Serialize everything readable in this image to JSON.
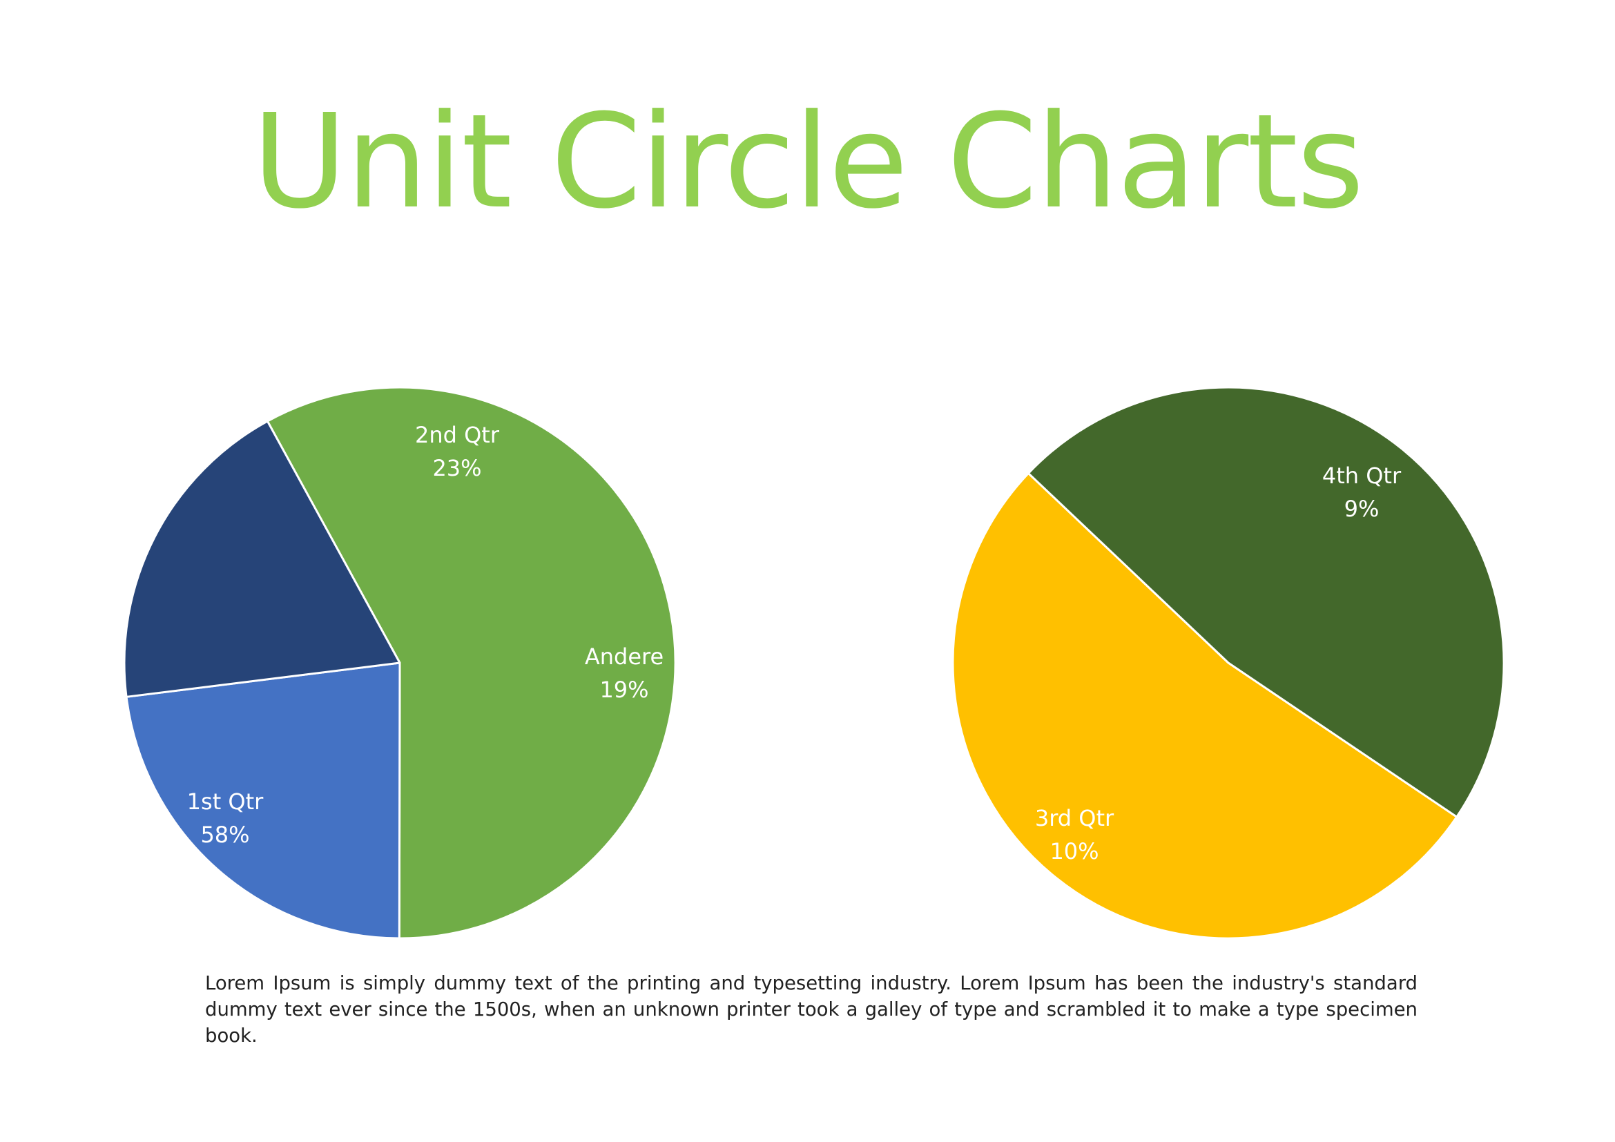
{
  "page": {
    "title": "Unit Circle Charts",
    "title_color": "#92D050",
    "body_text": "Lorem Ipsum is simply dummy text of the printing and typesetting industry. Lorem Ipsum has been the industry's standard dummy text ever since the 1500s, when an unknown printer took a galley of type and scrambled it to make a type specimen book."
  },
  "chart_data": [
    {
      "type": "pie",
      "slices": [
        {
          "label": "1st Qtr",
          "pct_text": "58%",
          "value": 58,
          "color": "#70AD47"
        },
        {
          "label": "2nd Qtr",
          "pct_text": "23%",
          "value": 23,
          "color": "#4472C4"
        },
        {
          "label": "Andere",
          "pct_text": "19%",
          "value": 19,
          "color": "#264478"
        }
      ]
    },
    {
      "type": "pie",
      "slices": [
        {
          "label": "3rd Qtr",
          "pct_text": "10%",
          "value": 10,
          "color": "#FFC000"
        },
        {
          "label": "4th Qtr",
          "pct_text": "9%",
          "value": 9,
          "color": "#43682B"
        }
      ]
    }
  ]
}
